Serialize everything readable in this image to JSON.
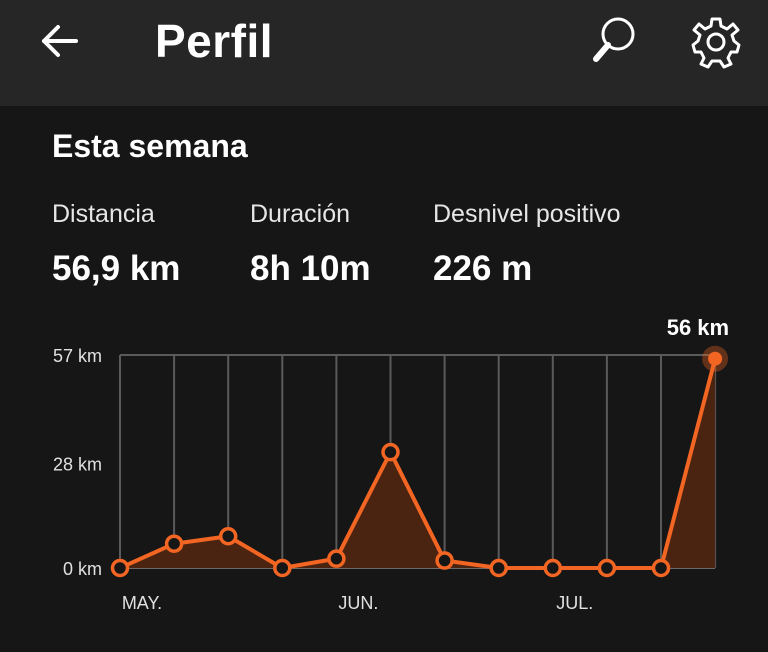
{
  "header": {
    "title": "Perfil",
    "back_icon": "arrow-left-icon",
    "search_icon": "search-icon",
    "settings_icon": "gear-icon"
  },
  "section": {
    "title": "Esta semana"
  },
  "stats": [
    {
      "label": "Distancia",
      "value": "56,9 km"
    },
    {
      "label": "Duración",
      "value": "8h 10m"
    },
    {
      "label": "Desnivel positivo",
      "value": "226 m"
    }
  ],
  "colors": {
    "accent": "#f26522",
    "fill": "#4a2410",
    "background": "#161616",
    "header": "#262626"
  },
  "chart_data": {
    "type": "area",
    "x": [
      "",
      "",
      "",
      "",
      "",
      "",
      "",
      "",
      "",
      "",
      "",
      ""
    ],
    "x_tick_labels": [
      "MAY.",
      "JUN.",
      "JUL."
    ],
    "y_tick_labels": [
      "57 km",
      "28 km",
      "0 km"
    ],
    "ylim": [
      0,
      57
    ],
    "series": [
      {
        "values": [
          0,
          6.5,
          8.5,
          0,
          2.5,
          31,
          2,
          0,
          0,
          0,
          0,
          56
        ]
      }
    ],
    "highlight": {
      "index": 11,
      "label": "56 km"
    },
    "grid": true
  }
}
